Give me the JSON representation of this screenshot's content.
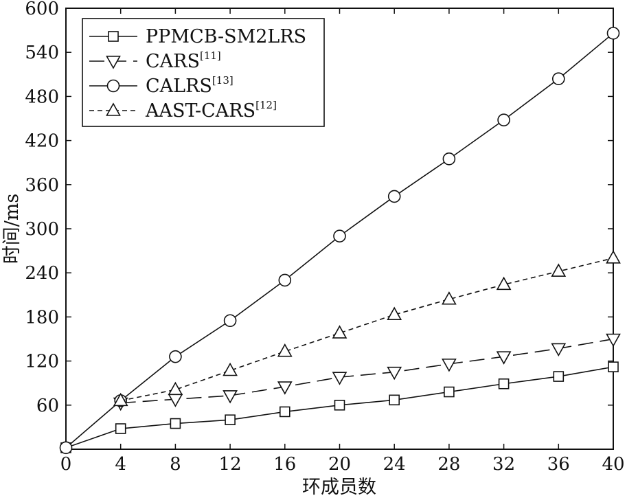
{
  "chart_data": {
    "type": "line",
    "xlabel": "环成员数",
    "ylabel": "时间/ms",
    "xlim": [
      0,
      40
    ],
    "ylim": [
      0,
      600
    ],
    "xticks": [
      0,
      4,
      8,
      12,
      16,
      20,
      24,
      28,
      32,
      36,
      40
    ],
    "yticks": [
      60,
      120,
      180,
      240,
      300,
      360,
      420,
      480,
      540,
      600
    ],
    "grid": false,
    "legend_position": "top-left",
    "x": [
      0,
      4,
      8,
      12,
      16,
      20,
      24,
      28,
      32,
      36,
      40
    ],
    "series": [
      {
        "name": "PPMCB-SM2LRS",
        "legend_main": "PPMCB-SM2LRS",
        "legend_ref": "",
        "marker": "square",
        "line": "solid",
        "values": [
          2,
          28,
          35,
          40,
          51,
          60,
          67,
          78,
          89,
          99,
          112
        ]
      },
      {
        "name": "CARS[11]",
        "legend_main": "CARS",
        "legend_ref": "[11]",
        "marker": "triangle-down",
        "line": "longdash",
        "values": [
          null,
          63,
          68,
          73,
          85,
          98,
          105,
          116,
          126,
          137,
          150
        ]
      },
      {
        "name": "CALRS[13]",
        "legend_main": "CALRS",
        "legend_ref": "[13]",
        "marker": "circle",
        "line": "solid",
        "values": [
          2,
          66,
          126,
          175,
          230,
          290,
          344,
          395,
          448,
          504,
          566
        ]
      },
      {
        "name": "AAST-CARS[12]",
        "legend_main": "AAST-CARS",
        "legend_ref": "[12]",
        "marker": "triangle-up",
        "line": "shortdash",
        "values": [
          null,
          66,
          81,
          107,
          133,
          158,
          183,
          204,
          224,
          242,
          260
        ]
      }
    ]
  }
}
